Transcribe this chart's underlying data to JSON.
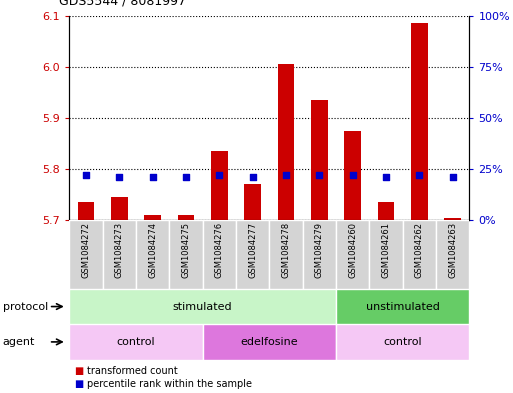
{
  "title": "GDS5544 / 8081997",
  "samples": [
    "GSM1084272",
    "GSM1084273",
    "GSM1084274",
    "GSM1084275",
    "GSM1084276",
    "GSM1084277",
    "GSM1084278",
    "GSM1084279",
    "GSM1084260",
    "GSM1084261",
    "GSM1084262",
    "GSM1084263"
  ],
  "transformed_count": [
    5.735,
    5.745,
    5.71,
    5.71,
    5.835,
    5.77,
    6.005,
    5.935,
    5.875,
    5.735,
    6.085,
    5.705
  ],
  "percentile_rank": [
    22,
    21,
    21,
    21,
    22,
    21,
    22,
    22,
    22,
    21,
    22,
    21
  ],
  "ylim_left": [
    5.7,
    6.1
  ],
  "ylim_right": [
    0,
    100
  ],
  "yticks_left": [
    5.7,
    5.8,
    5.9,
    6.0,
    6.1
  ],
  "yticks_right": [
    0,
    25,
    50,
    75,
    100
  ],
  "ytick_labels_right": [
    "0%",
    "25%",
    "50%",
    "75%",
    "100%"
  ],
  "protocol_groups": [
    {
      "label": "stimulated",
      "start": 0,
      "end": 8,
      "color": "#c8f5c8"
    },
    {
      "label": "unstimulated",
      "start": 8,
      "end": 12,
      "color": "#66cc66"
    }
  ],
  "agent_groups": [
    {
      "label": "control",
      "start": 0,
      "end": 4,
      "color": "#f5c8f5"
    },
    {
      "label": "edelfosine",
      "start": 4,
      "end": 8,
      "color": "#dd77dd"
    },
    {
      "label": "control",
      "start": 8,
      "end": 12,
      "color": "#f5c8f5"
    }
  ],
  "bar_color": "#cc0000",
  "dot_color": "#0000cc",
  "bar_bottom": 5.7,
  "bar_width": 0.5,
  "dot_size": 25,
  "grid_color": "black",
  "left_tick_color": "#cc0000",
  "right_tick_color": "#0000cc",
  "legend_items": [
    {
      "label": "transformed count",
      "color": "#cc0000"
    },
    {
      "label": "percentile rank within the sample",
      "color": "#0000cc"
    }
  ],
  "sample_bg_color": "#d4d4d4",
  "sample_border_color": "#ffffff"
}
